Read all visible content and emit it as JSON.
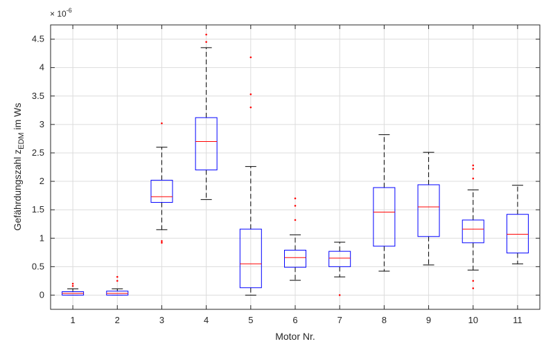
{
  "chart_data": {
    "type": "box",
    "xlabel": "Motor Nr.",
    "ylabel_main": "Gefährdungszahl z",
    "ylabel_sub": "EDM",
    "ylabel_tail": " im Ws",
    "y_exponent_base": "× 10",
    "y_exponent_power": "-6",
    "ylim": [
      -0.25,
      4.75
    ],
    "yticks": [
      0,
      0.5,
      1,
      1.5,
      2,
      2.5,
      3,
      3.5,
      4,
      4.5
    ],
    "ytick_labels": [
      "0",
      "0.5",
      "1",
      "1.5",
      "2",
      "2.5",
      "3",
      "3.5",
      "4",
      "4.5"
    ],
    "grid": true,
    "colors": {
      "box": "#0000ff",
      "median": "#ff0000",
      "whisker": "#000000",
      "outlier": "#ff0000",
      "grid": "#dcdcdc",
      "axis": "#262626"
    },
    "categories": [
      "1",
      "2",
      "3",
      "4",
      "5",
      "6",
      "7",
      "8",
      "9",
      "10",
      "11"
    ],
    "boxes": [
      {
        "category": "1",
        "whisker_low": 0.0,
        "q1": 0.0,
        "median": 0.03,
        "q3": 0.06,
        "whisker_high": 0.11,
        "outliers": [
          0.16,
          0.2
        ]
      },
      {
        "category": "2",
        "whisker_low": 0.0,
        "q1": 0.0,
        "median": 0.03,
        "q3": 0.07,
        "whisker_high": 0.11,
        "outliers": [
          0.25,
          0.32
        ]
      },
      {
        "category": "3",
        "whisker_low": 1.15,
        "q1": 1.63,
        "median": 1.73,
        "q3": 2.02,
        "whisker_high": 2.6,
        "outliers": [
          0.92,
          0.95,
          3.02
        ]
      },
      {
        "category": "4",
        "whisker_low": 1.68,
        "q1": 2.2,
        "median": 2.7,
        "q3": 3.12,
        "whisker_high": 4.35,
        "outliers": [
          4.45,
          4.58
        ]
      },
      {
        "category": "5",
        "whisker_low": 0.0,
        "q1": 0.13,
        "median": 0.55,
        "q3": 1.16,
        "whisker_high": 2.26,
        "outliers": [
          3.3,
          3.53,
          4.18
        ]
      },
      {
        "category": "6",
        "whisker_low": 0.26,
        "q1": 0.49,
        "median": 0.66,
        "q3": 0.79,
        "whisker_high": 1.06,
        "outliers": [
          1.32,
          1.57,
          1.7
        ]
      },
      {
        "category": "7",
        "whisker_low": 0.32,
        "q1": 0.5,
        "median": 0.65,
        "q3": 0.77,
        "whisker_high": 0.93,
        "outliers": [
          0.0
        ]
      },
      {
        "category": "8",
        "whisker_low": 0.42,
        "q1": 0.86,
        "median": 1.46,
        "q3": 1.89,
        "whisker_high": 2.82,
        "outliers": []
      },
      {
        "category": "9",
        "whisker_low": 0.53,
        "q1": 1.03,
        "median": 1.55,
        "q3": 1.94,
        "whisker_high": 2.51,
        "outliers": []
      },
      {
        "category": "10",
        "whisker_low": 0.44,
        "q1": 0.92,
        "median": 1.16,
        "q3": 1.32,
        "whisker_high": 1.85,
        "outliers": [
          0.12,
          0.25,
          2.05,
          2.22,
          2.28
        ]
      },
      {
        "category": "11",
        "whisker_low": 0.55,
        "q1": 0.74,
        "median": 1.07,
        "q3": 1.42,
        "whisker_high": 1.93,
        "outliers": []
      }
    ]
  }
}
